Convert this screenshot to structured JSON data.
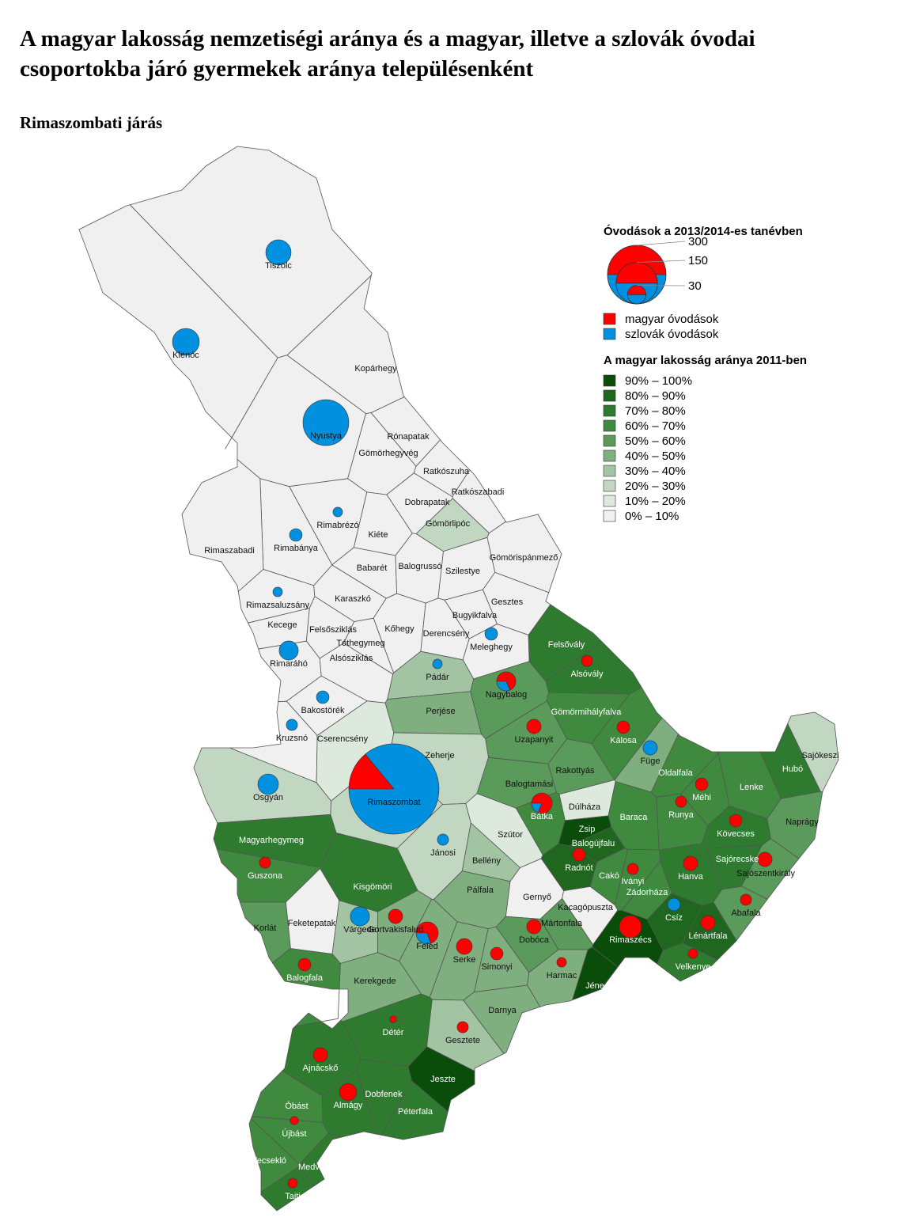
{
  "header": {
    "title_lines": [
      "A magyar lakosság nemzetiségi aránya és a magyar, illetve a szlovák óvodai",
      "csoportokba járó gyermekek aránya településenként"
    ],
    "subtitle": "Rimaszombati járás"
  },
  "legend": {
    "size_title": "Óvodások a 2013/2014-es tanévben",
    "size_values": [
      300,
      150,
      30
    ],
    "groups": [
      {
        "name": "magyar óvodások",
        "color": "#ff0000"
      },
      {
        "name": "szlovák óvodások",
        "color": "#0090e0"
      }
    ],
    "class_title": "A magyar lakosság aránya 2011-ben",
    "classes": [
      {
        "label": "90% – 100%",
        "color": "#0a4d0a"
      },
      {
        "label": "80% – 90%",
        "color": "#1f661f"
      },
      {
        "label": "70% – 80%",
        "color": "#2e7a2e"
      },
      {
        "label": "60% – 70%",
        "color": "#3f8a3f"
      },
      {
        "label": "50% – 60%",
        "color": "#5a9a5a"
      },
      {
        "label": "40% – 50%",
        "color": "#7fae7f"
      },
      {
        "label": "30% – 40%",
        "color": "#a3c4a3"
      },
      {
        "label": "20% – 30%",
        "color": "#c2d7c2"
      },
      {
        "label": "10% – 20%",
        "color": "#dde9dd"
      },
      {
        "label": "0% – 10%",
        "color": "#f0f0f0"
      }
    ]
  },
  "settlements": [
    {
      "name": "Tiszolc",
      "class": 9,
      "magyar": 0,
      "szlovak": 56
    },
    {
      "name": "Klenóc",
      "class": 9,
      "magyar": 0,
      "szlovak": 63
    },
    {
      "name": "Nyustya",
      "class": 9,
      "magyar": 0,
      "szlovak": 184
    },
    {
      "name": "Kopárhegy",
      "class": 9
    },
    {
      "name": "Rónapatak",
      "class": 9
    },
    {
      "name": "Gömörhegyvég",
      "class": 9
    },
    {
      "name": "Ratkószuha",
      "class": 9
    },
    {
      "name": "Ratkószabadi",
      "class": 9
    },
    {
      "name": "Dobrapatak",
      "class": 9
    },
    {
      "name": "Gömörlipóc",
      "class": 7
    },
    {
      "name": "Gömörispánmező",
      "class": 9
    },
    {
      "name": "Rimabrézó",
      "class": 9,
      "magyar": 0,
      "szlovak": 8
    },
    {
      "name": "Kiéte",
      "class": 9
    },
    {
      "name": "Rimabánya",
      "class": 9,
      "magyar": 0,
      "szlovak": 14
    },
    {
      "name": "Rimaszabadi",
      "class": 9
    },
    {
      "name": "Babarét",
      "class": 9
    },
    {
      "name": "Balogrussó",
      "class": 9
    },
    {
      "name": "Szilestye",
      "class": 9
    },
    {
      "name": "Gesztes",
      "class": 9
    },
    {
      "name": "Rimazsaluzsány",
      "class": 9,
      "magyar": 0,
      "szlovak": 8
    },
    {
      "name": "Karaszkó",
      "class": 9
    },
    {
      "name": "Bugyikfalva",
      "class": 9
    },
    {
      "name": "Kecege",
      "class": 9
    },
    {
      "name": "Felsősziklás",
      "class": 9
    },
    {
      "name": "Kőhegy",
      "class": 9
    },
    {
      "name": "Derencsény",
      "class": 9
    },
    {
      "name": "Meleghegy",
      "class": 9,
      "magyar": 0,
      "szlovak": 14
    },
    {
      "name": "Tóthegymeg",
      "class": 9
    },
    {
      "name": "Rimaráhó",
      "class": 9,
      "magyar": 0,
      "szlovak": 32
    },
    {
      "name": "Alsósziklás",
      "class": 9
    },
    {
      "name": "Pádár",
      "class": 6,
      "magyar": 0,
      "szlovak": 8
    },
    {
      "name": "Nagybalog",
      "class": 4,
      "magyar": 22,
      "szlovak": 10
    },
    {
      "name": "Felsővály",
      "class": 2
    },
    {
      "name": "Alsóvály",
      "class": 2,
      "magyar": 11,
      "szlovak": 0
    },
    {
      "name": "Bakostörék",
      "class": 9,
      "magyar": 0,
      "szlovak": 14
    },
    {
      "name": "Perjése",
      "class": 5
    },
    {
      "name": "Gömörmihályfalva",
      "class": 3
    },
    {
      "name": "Kruzsnó",
      "class": 9,
      "magyar": 0,
      "szlovak": 11
    },
    {
      "name": "Cserencsény",
      "class": 8
    },
    {
      "name": "Uzapanyit",
      "class": 4,
      "magyar": 18,
      "szlovak": 0
    },
    {
      "name": "Kálosa",
      "class": 3,
      "magyar": 14,
      "szlovak": 0
    },
    {
      "name": "Füge",
      "class": 5,
      "magyar": 0,
      "szlovak": 18
    },
    {
      "name": "Zeherje",
      "class": 7
    },
    {
      "name": "Sajókeszi",
      "class": 7
    },
    {
      "name": "Rakottyás",
      "class": 4
    },
    {
      "name": "Hubó",
      "class": 2
    },
    {
      "name": "Oldalfala",
      "class": 3
    },
    {
      "name": "Rimaszombat",
      "class": 7,
      "magyar": 100,
      "szlovak": 612
    },
    {
      "name": "Osgyán",
      "class": 7,
      "magyar": 0,
      "szlovak": 37
    },
    {
      "name": "Balogtamási",
      "class": 4
    },
    {
      "name": "Lenke",
      "class": 3
    },
    {
      "name": "Méhi",
      "class": 3,
      "magyar": 14,
      "szlovak": 0
    },
    {
      "name": "Bátka",
      "class": 3,
      "magyar": 30,
      "szlovak": 7
    },
    {
      "name": "Dúlháza",
      "class": 8
    },
    {
      "name": "Runya",
      "class": 3,
      "magyar": 11,
      "szlovak": 0
    },
    {
      "name": "Baraca",
      "class": 3
    },
    {
      "name": "Naprágy",
      "class": 4
    },
    {
      "name": "Zsip",
      "class": 0
    },
    {
      "name": "Kövecses",
      "class": 2,
      "magyar": 14,
      "szlovak": 0
    },
    {
      "name": "Magyarhegymeg",
      "class": 2
    },
    {
      "name": "Szútor",
      "class": 8
    },
    {
      "name": "Balogújfalu",
      "class": 1
    },
    {
      "name": "Jánosi",
      "class": 7,
      "magyar": 0,
      "szlovak": 11
    },
    {
      "name": "Bellény",
      "class": 6
    },
    {
      "name": "Sajórecske",
      "class": 2,
      "magyar": 18,
      "szlovak": 0
    },
    {
      "name": "Guszona",
      "class": 3,
      "magyar": 11,
      "szlovak": 0
    },
    {
      "name": "Radnót",
      "class": 1,
      "magyar": 14,
      "szlovak": 0
    },
    {
      "name": "Hanva",
      "class": 2,
      "magyar": 18,
      "szlovak": 0
    },
    {
      "name": "Sajószentkirály",
      "class": 4
    },
    {
      "name": "Cakó",
      "class": 3
    },
    {
      "name": "Iványi",
      "class": 3,
      "magyar": 11,
      "szlovak": 0
    },
    {
      "name": "Kisgömöri",
      "class": 2
    },
    {
      "name": "Pálfala",
      "class": 5
    },
    {
      "name": "Zádorháza",
      "class": 3
    },
    {
      "name": "Gernyő",
      "class": 9
    },
    {
      "name": "Kacagópuszta",
      "class": 9
    },
    {
      "name": "Abafala",
      "class": 4,
      "magyar": 11,
      "szlovak": 0
    },
    {
      "name": "Csíz",
      "class": 1,
      "magyar": 0,
      "szlovak": 14
    },
    {
      "name": "Korlát",
      "class": 4
    },
    {
      "name": "Feketepatak",
      "class": 9
    },
    {
      "name": "Várgede",
      "class": 6,
      "magyar": 0,
      "szlovak": 32
    },
    {
      "name": "Gortvakisfalud",
      "class": 5,
      "magyar": 18,
      "szlovak": 0
    },
    {
      "name": "Mártonfala",
      "class": 4
    },
    {
      "name": "Rimaszécs",
      "class": 0,
      "magyar": 43,
      "szlovak": 0
    },
    {
      "name": "Lénártfala",
      "class": 1,
      "magyar": 18,
      "szlovak": 0
    },
    {
      "name": "Feled",
      "class": 5,
      "magyar": 30,
      "szlovak": 13
    },
    {
      "name": "Dobóca",
      "class": 4,
      "magyar": 18,
      "szlovak": 0
    },
    {
      "name": "Serke",
      "class": 5,
      "magyar": 22,
      "szlovak": 0
    },
    {
      "name": "Simonyi",
      "class": 5,
      "magyar": 14,
      "szlovak": 0
    },
    {
      "name": "Velkenye",
      "class": 2,
      "magyar": 8,
      "szlovak": 0
    },
    {
      "name": "Balogfala",
      "class": 3,
      "magyar": 14,
      "szlovak": 0
    },
    {
      "name": "Harmac",
      "class": 5,
      "magyar": 8,
      "szlovak": 0
    },
    {
      "name": "Kerekgede",
      "class": 5
    },
    {
      "name": "Jéne",
      "class": 0
    },
    {
      "name": "Darnya",
      "class": 5
    },
    {
      "name": "Détér",
      "class": 2,
      "magyar": 4,
      "szlovak": 0
    },
    {
      "name": "Gesztete",
      "class": 6,
      "magyar": 11,
      "szlovak": 0
    },
    {
      "name": "Ajnácskő",
      "class": 2,
      "magyar": 18,
      "szlovak": 0
    },
    {
      "name": "Jeszte",
      "class": 0
    },
    {
      "name": "Dobfenek",
      "class": 2
    },
    {
      "name": "Almágy",
      "class": 2,
      "magyar": 26,
      "szlovak": 0
    },
    {
      "name": "Óbást",
      "class": 3
    },
    {
      "name": "Péterfala",
      "class": 2
    },
    {
      "name": "Újbást",
      "class": 3,
      "magyar": 6,
      "szlovak": 0
    },
    {
      "name": "Vecsekló",
      "class": 3
    },
    {
      "name": "Medveshidegkút",
      "class": 2
    },
    {
      "name": "Tajti",
      "class": 2,
      "magyar": 8,
      "szlovak": 0
    }
  ]
}
